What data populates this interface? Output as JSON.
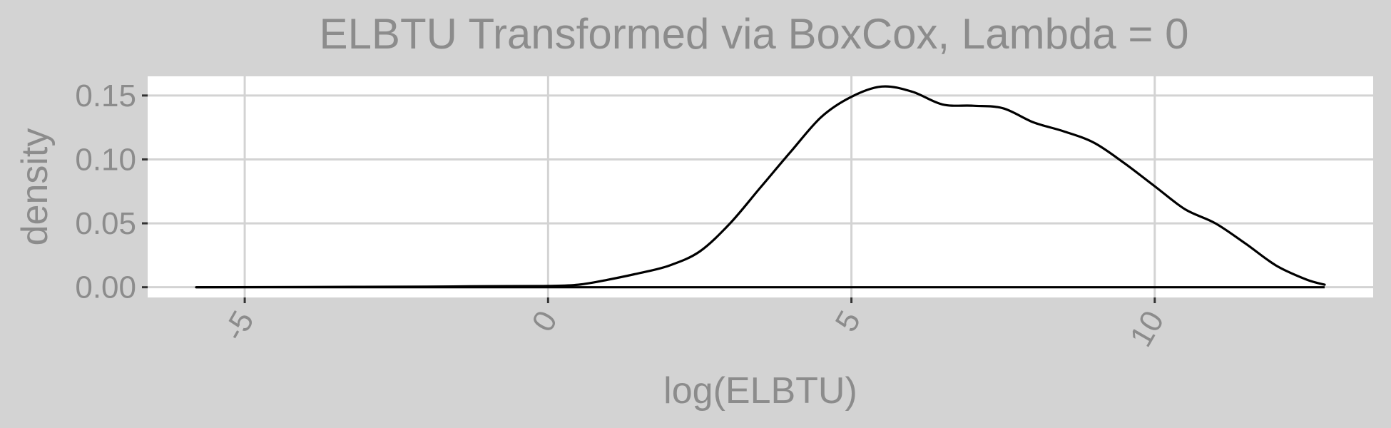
{
  "chart_data": {
    "type": "line",
    "title": "ELBTU Transformed via BoxCox, Lambda = 0",
    "xlabel": "log(ELBTU)",
    "ylabel": "density",
    "xlim": [
      -6.6,
      13.6
    ],
    "ylim": [
      -0.008,
      0.165
    ],
    "x_ticks": [
      -5,
      0,
      5,
      10
    ],
    "x_tick_labels": [
      "-5",
      "0",
      "5",
      "10"
    ],
    "y_ticks": [
      0,
      0.05,
      0.1,
      0.15
    ],
    "y_tick_labels": [
      "0.00",
      "0.05",
      "0.10",
      "0.15"
    ],
    "grid": true,
    "legend": "none",
    "colors": {
      "background": "#d3d3d3",
      "panel": "#ffffff",
      "grid": "#d3d3d3",
      "text": "#8c8c8c",
      "line": "#000000"
    },
    "series": [
      {
        "x": [
          -5.8,
          -4,
          -2,
          -1,
          0,
          0.5,
          1,
          1.5,
          2,
          2.5,
          3,
          3.5,
          4,
          4.5,
          5,
          5.5,
          6,
          6.5,
          7,
          7.5,
          8,
          8.5,
          9,
          9.5,
          10,
          10.5,
          11,
          11.5,
          12,
          12.5,
          12.8
        ],
        "y": [
          0,
          0.0002,
          0.0005,
          0.0008,
          0.001,
          0.002,
          0.006,
          0.011,
          0.017,
          0.028,
          0.05,
          0.078,
          0.106,
          0.133,
          0.149,
          0.157,
          0.153,
          0.143,
          0.142,
          0.14,
          0.129,
          0.122,
          0.113,
          0.097,
          0.079,
          0.061,
          0.05,
          0.034,
          0.017,
          0.006,
          0.002
        ]
      }
    ]
  }
}
